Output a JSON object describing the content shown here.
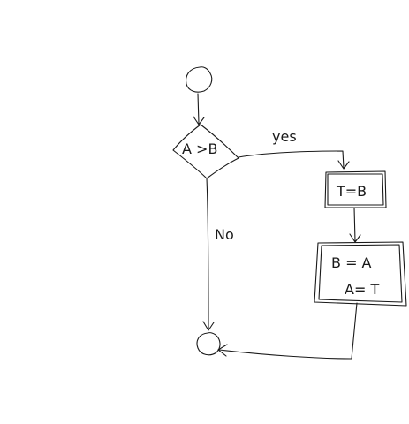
{
  "diagram": {
    "decision": {
      "label": "A >B"
    },
    "branches": {
      "yes": "yes",
      "no": "No"
    },
    "process1": {
      "label": "T=B"
    },
    "process2": {
      "line1": "B = A",
      "line2": "A= T"
    },
    "stroke_color": "#1a1a1a",
    "background": "#ffffff"
  }
}
